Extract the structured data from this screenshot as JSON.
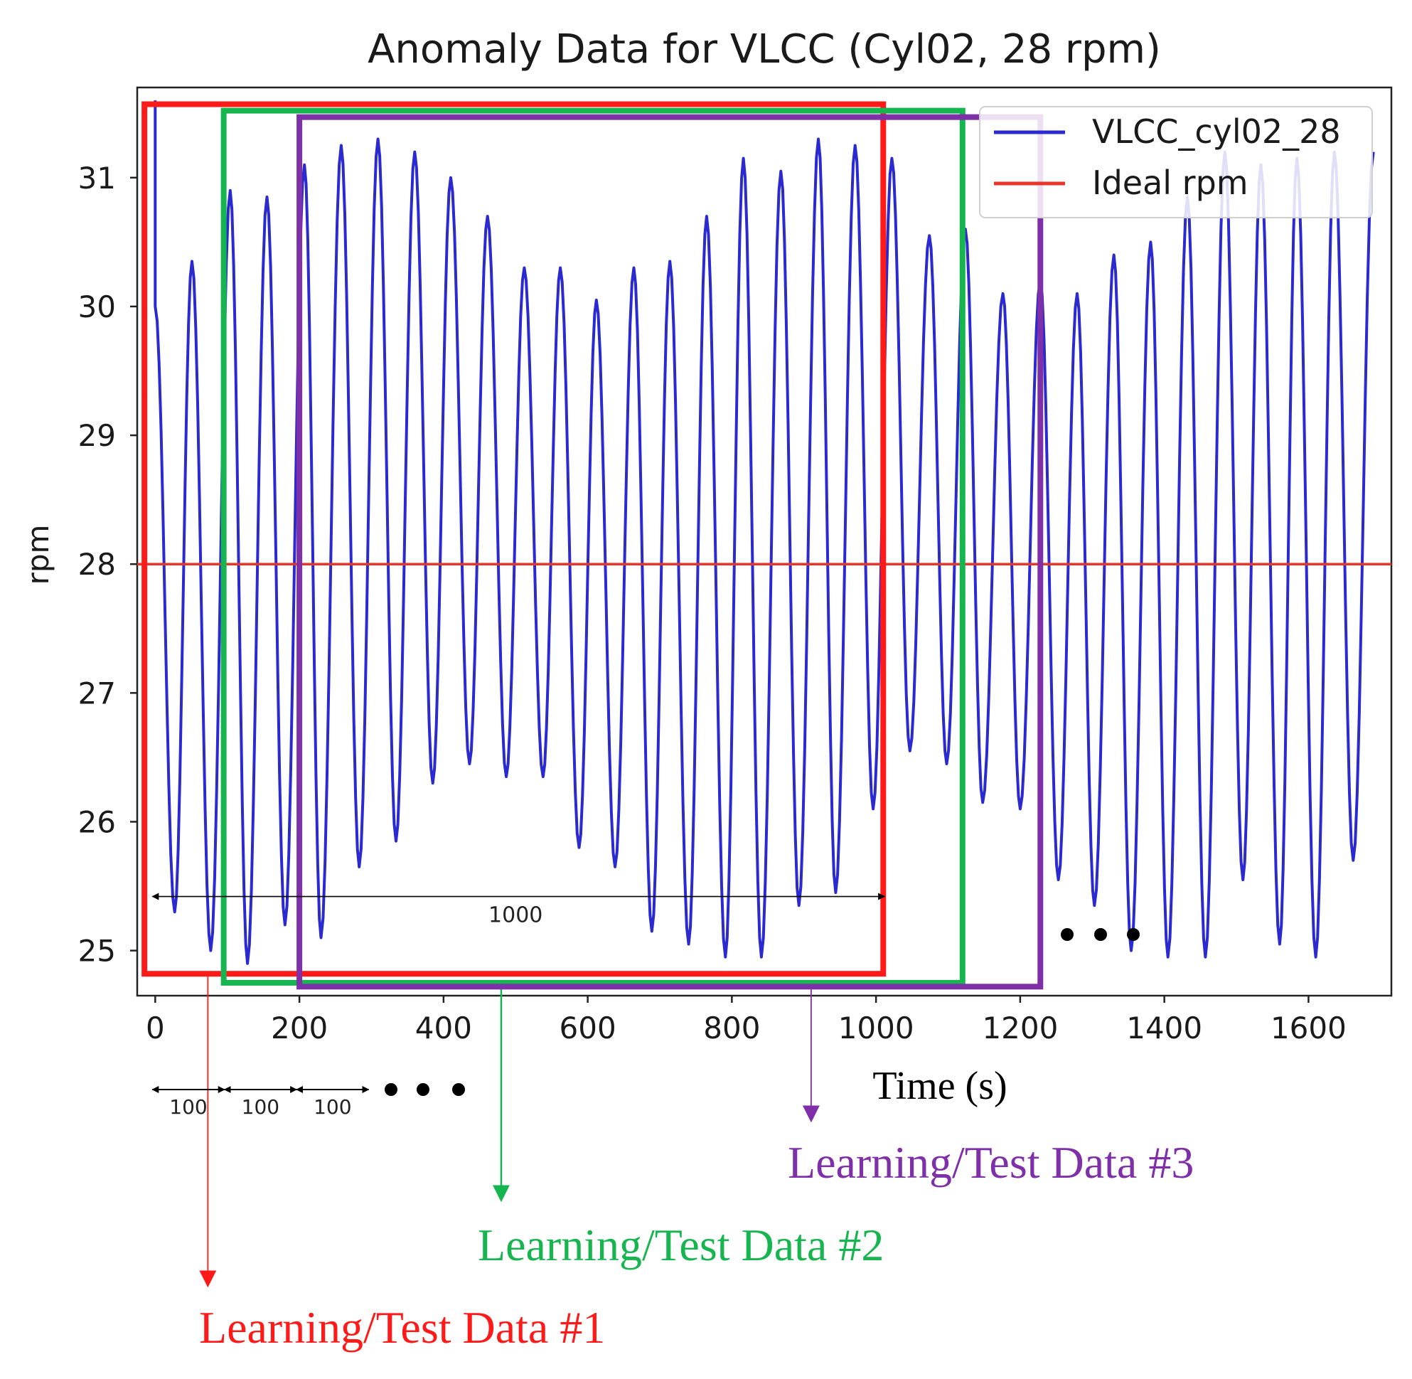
{
  "chart_data": {
    "type": "line",
    "title": "Anomaly Data for VLCC (Cyl02, 28 rpm)",
    "xlabel": "Time (s)",
    "ylabel": "rpm",
    "xlim": [
      -25,
      1715
    ],
    "ylim": [
      24.65,
      31.7
    ],
    "xticks": [
      0,
      200,
      400,
      600,
      800,
      1000,
      1200,
      1400,
      1600
    ],
    "yticks": [
      25,
      26,
      27,
      28,
      29,
      30,
      31
    ],
    "grid": false,
    "legend_position": "top-right",
    "series": [
      {
        "name": "VLCC_cyl02_28",
        "color": "#2a2ad0",
        "style": "oscillation",
        "start_value": 31.6,
        "peak_times": [
          0,
          51,
          104,
          155,
          207,
          258,
          309,
          360,
          410,
          461,
          512,
          562,
          612,
          664,
          714,
          765,
          816,
          868,
          920,
          971,
          1022,
          1074,
          1124,
          1176,
          1228,
          1279,
          1330,
          1381,
          1432,
          1484,
          1534,
          1584,
          1636,
          1690
        ],
        "peak_values": [
          30.0,
          30.35,
          30.9,
          30.85,
          31.1,
          31.25,
          31.3,
          31.2,
          31.0,
          30.7,
          30.3,
          30.3,
          30.05,
          30.3,
          30.35,
          30.7,
          31.15,
          31.05,
          31.3,
          31.25,
          31.15,
          30.55,
          30.6,
          30.1,
          30.2,
          30.1,
          30.4,
          30.5,
          30.85,
          31.2,
          31.1,
          31.15,
          31.2,
          31.2
        ],
        "trough_times": [
          27,
          77,
          128,
          180,
          230,
          283,
          334,
          385,
          436,
          487,
          538,
          588,
          638,
          689,
          740,
          791,
          841,
          893,
          944,
          996,
          1047,
          1098,
          1148,
          1200,
          1253,
          1303,
          1354,
          1405,
          1457,
          1509,
          1560,
          1610,
          1662
        ],
        "trough_values": [
          25.3,
          25.0,
          24.9,
          25.2,
          25.1,
          25.65,
          25.85,
          26.3,
          26.45,
          26.35,
          26.35,
          25.8,
          25.65,
          25.15,
          25.05,
          24.95,
          24.95,
          25.35,
          25.45,
          26.1,
          26.55,
          26.45,
          26.15,
          26.1,
          25.55,
          25.35,
          25.0,
          24.95,
          24.95,
          25.55,
          25.05,
          24.95,
          25.7
        ]
      },
      {
        "name": "Ideal rpm",
        "color": "#e8352a",
        "style": "constant",
        "value": 28
      }
    ],
    "windows": [
      {
        "label": "Learning/Test Data #1",
        "color": "#ff1a1a",
        "x_start": -15,
        "x_end": 1010,
        "y_low": 24.82,
        "y_high": 31.57,
        "pointer_x": 73
      },
      {
        "label": "Learning/Test Data #2",
        "color": "#16b550",
        "x_start": 95,
        "x_end": 1120,
        "y_low": 24.75,
        "y_high": 31.52,
        "pointer_x": 480
      },
      {
        "label": "Learning/Test Data #3",
        "color": "#7f2fa8",
        "x_start": 200,
        "x_end": 1228,
        "y_low": 24.72,
        "y_high": 31.47,
        "pointer_x": 910
      }
    ],
    "window_length_annotation": {
      "label": "1000",
      "x_start": 0,
      "x_end": 1000,
      "y": 25.42
    },
    "step_annotations": {
      "labels": [
        "100",
        "100",
        "100"
      ],
      "x_starts": [
        0,
        100,
        200
      ],
      "step": 100
    }
  }
}
